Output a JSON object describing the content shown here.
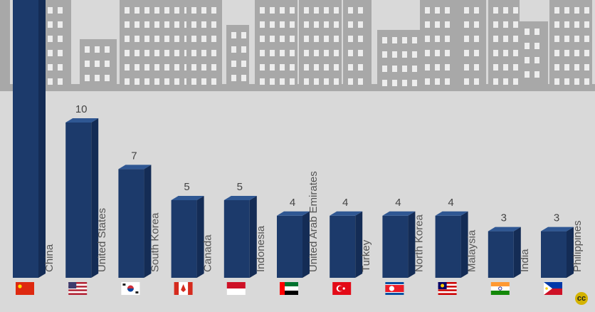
{
  "chart_data": {
    "type": "bar",
    "categories": [
      "China",
      "United States",
      "South Korea",
      "Canada",
      "Indonesia",
      "United Arab Emirates",
      "Turkey",
      "North Korea",
      "Malaysia",
      "India",
      "Philippines"
    ],
    "values": [
      null,
      10,
      7,
      5,
      5,
      4,
      4,
      4,
      4,
      3,
      3
    ],
    "value_labels": [
      "",
      "10",
      "7",
      "5",
      "5",
      "4",
      "4",
      "4",
      "4",
      "3",
      "3"
    ],
    "flag_icons": [
      "flag-china-icon",
      "flag-united-states-icon",
      "flag-south-korea-icon",
      "flag-canada-icon",
      "flag-indonesia-icon",
      "flag-uae-icon",
      "flag-turkey-icon",
      "flag-north-korea-icon",
      "flag-malaysia-icon",
      "flag-india-icon",
      "flag-philippines-icon"
    ],
    "bar_color": "#1c3a6b",
    "bar_side_color": "#142c55",
    "bar_top_color": "#2f5793",
    "background_color": "#d9d9d9",
    "skyline_color": "#a8a8a8",
    "ylim": [
      0,
      10
    ]
  },
  "badge": {
    "icon": "creative-commons-icon",
    "text": "cc"
  }
}
